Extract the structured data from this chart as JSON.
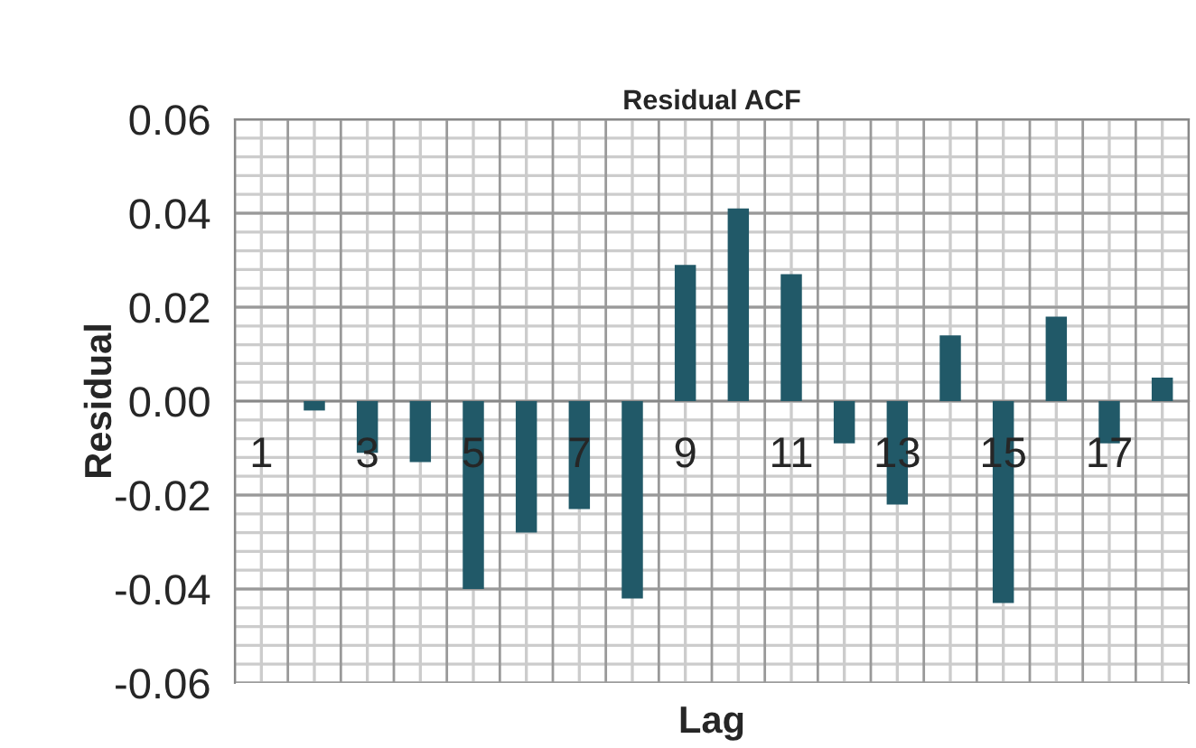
{
  "chart_data": {
    "type": "bar",
    "title": "Residual ACF",
    "xlabel": "Lag",
    "ylabel": "Residual",
    "categories": [
      "1",
      null,
      "3",
      null,
      "5",
      null,
      "7",
      null,
      "9",
      null,
      "11",
      null,
      "13",
      null,
      "15",
      null,
      "17",
      null
    ],
    "series": [
      {
        "color": "#215968",
        "values": [
          null,
          -0.002,
          -0.011,
          -0.013,
          -0.04,
          -0.028,
          -0.023,
          -0.042,
          0.029,
          0.041,
          0.027,
          -0.009,
          -0.022,
          0.014,
          -0.043,
          0.018,
          -0.009,
          0.005
        ]
      }
    ],
    "ylim": [
      -0.06,
      0.06
    ],
    "yticks": [
      {
        "value": -0.06,
        "label": "-0.06"
      },
      {
        "value": -0.04,
        "label": "-0.04"
      },
      {
        "value": -0.02,
        "label": "-0.02"
      },
      {
        "value": 0,
        "label": "0.00"
      },
      {
        "value": 0.02,
        "label": "0.02"
      },
      {
        "value": 0.04,
        "label": "0.04"
      },
      {
        "value": 0.06,
        "label": "0.06"
      }
    ],
    "grid": true,
    "legend": false
  }
}
